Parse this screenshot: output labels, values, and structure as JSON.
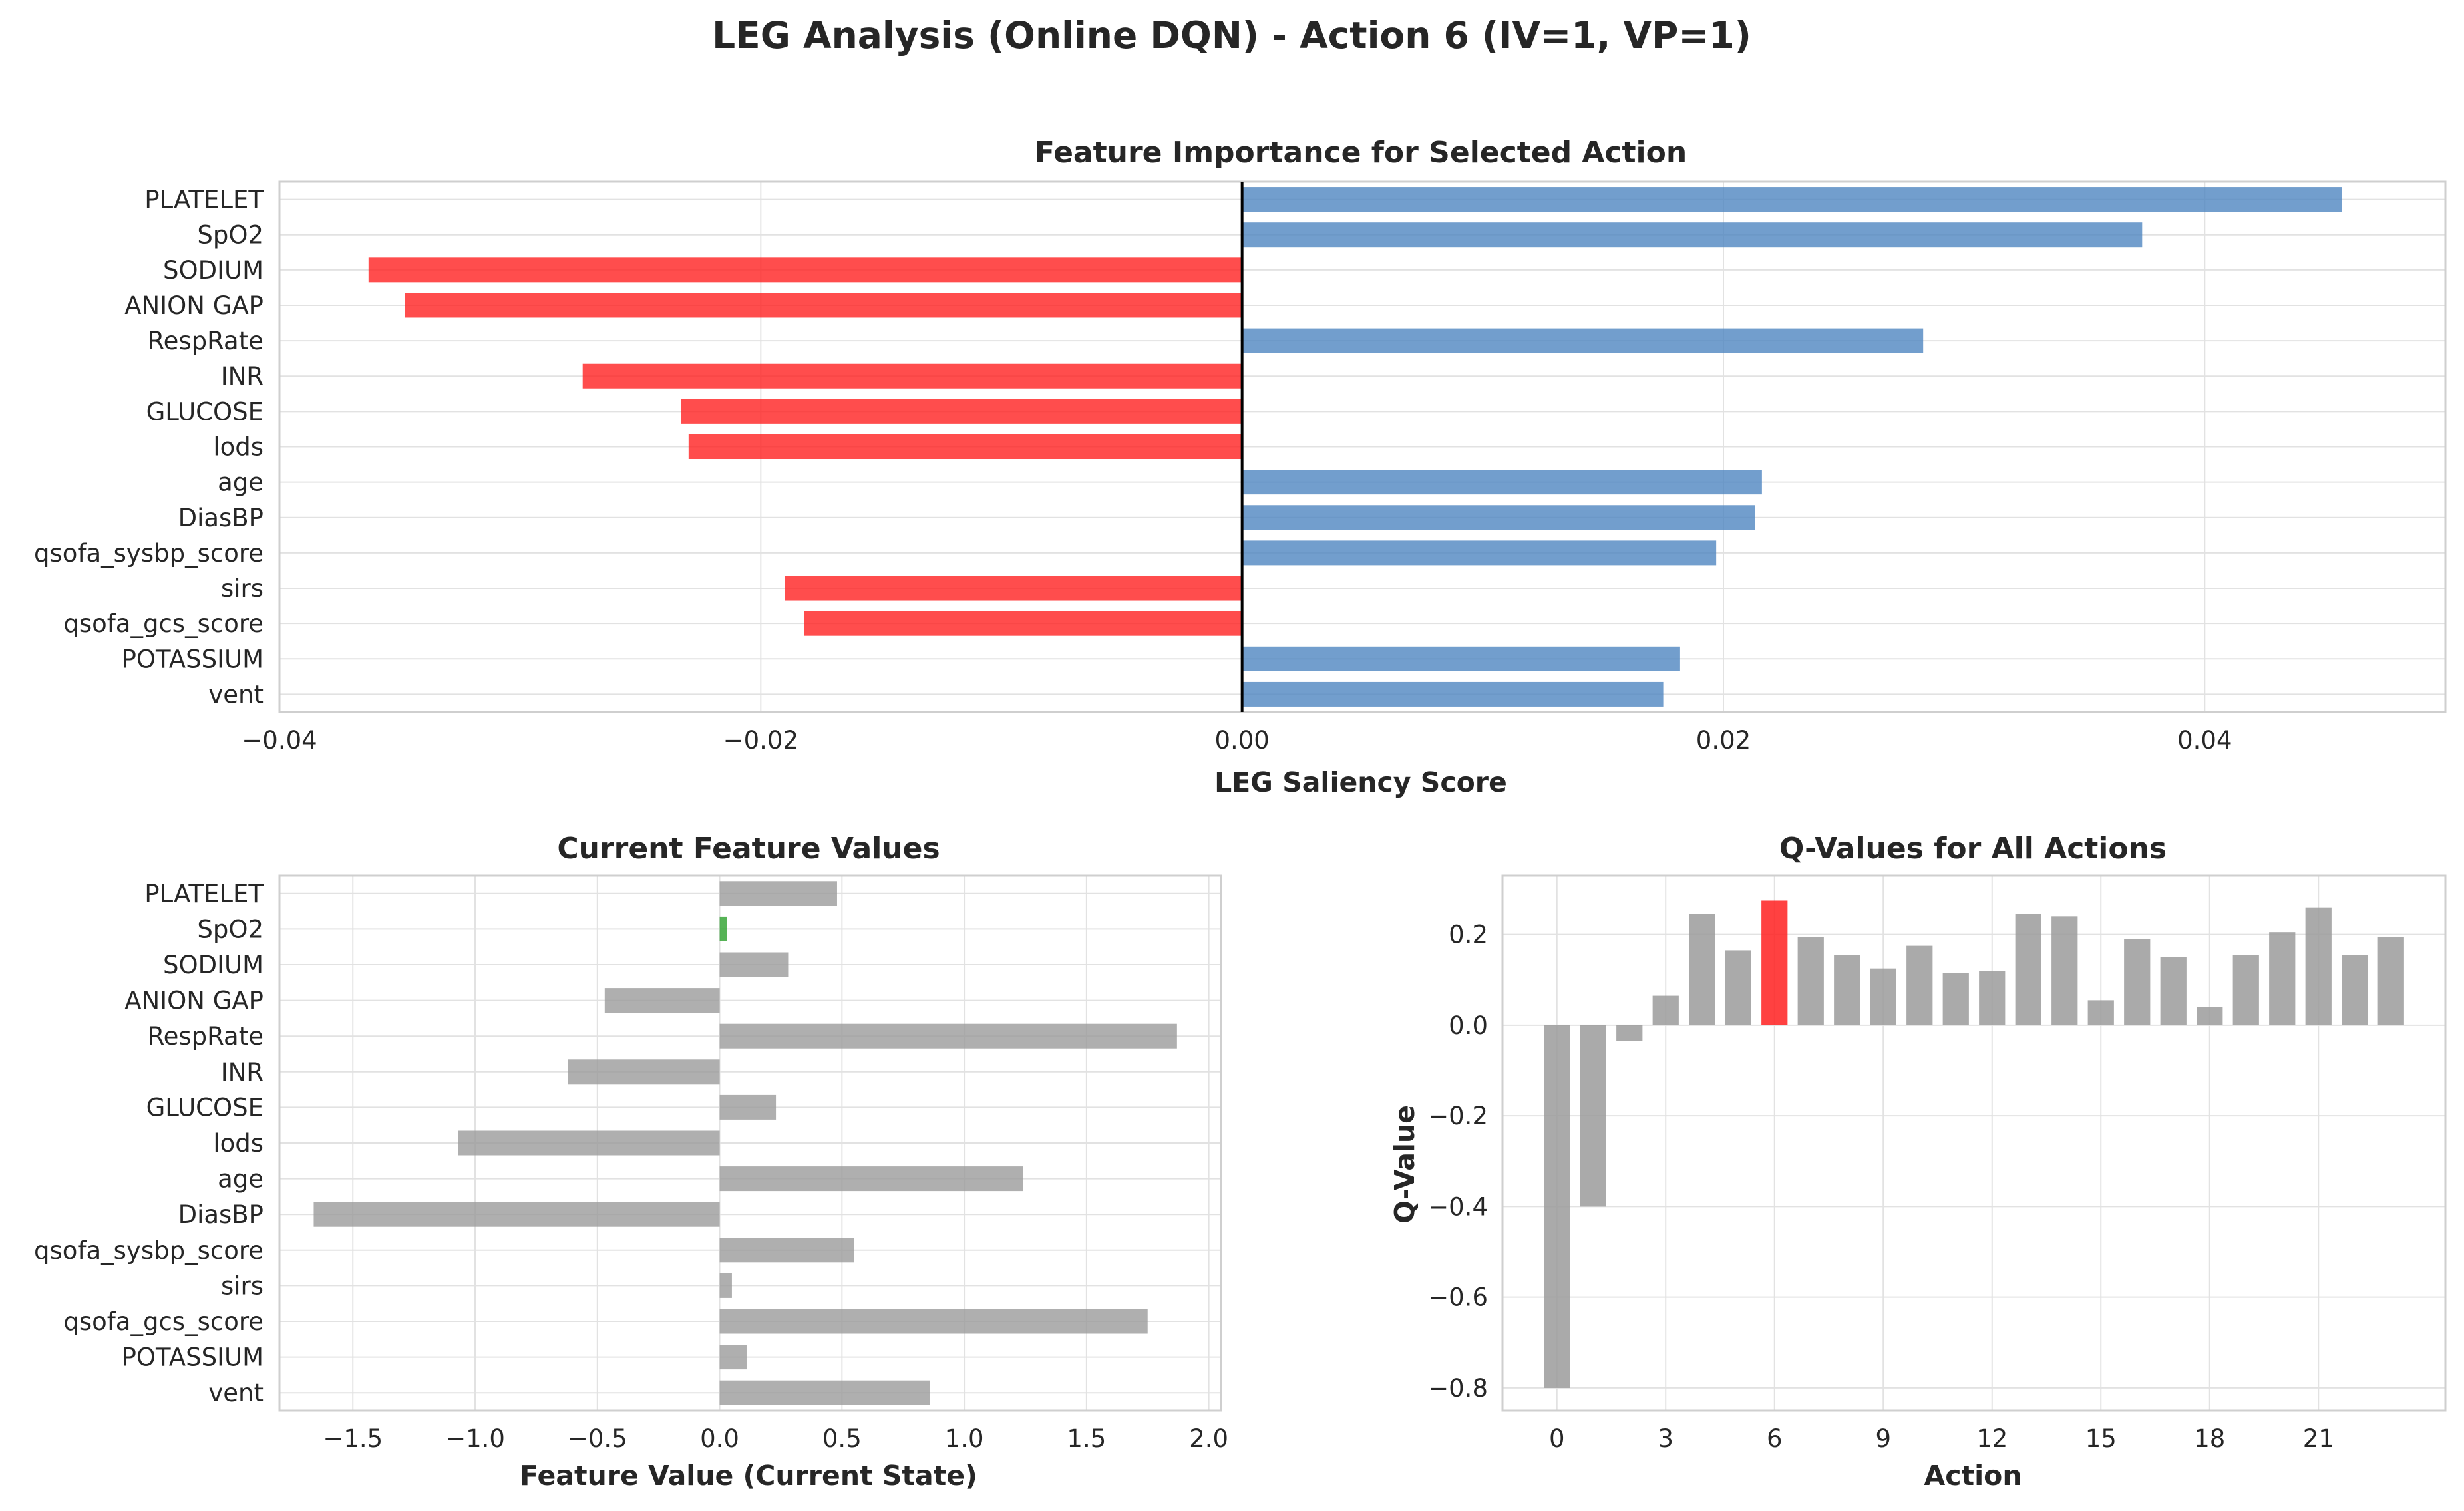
{
  "figure": {
    "suptitle": "LEG Analysis (Online DQN) - Action 6 (IV=1, VP=1)"
  },
  "colors": {
    "positive": "#4f86c0",
    "negative": "#ff2020",
    "neutral": "#9b9b9b",
    "highlight_feature": "#2ca02c",
    "selected_action": "#ff2020",
    "grid": "#e2e2e2",
    "spine": "#cfcfcf"
  },
  "chart_data": [
    {
      "id": "importance",
      "type": "bar",
      "orientation": "horizontal",
      "title": "Feature Importance for Selected Action",
      "xlabel": "LEG Saliency Score",
      "ylabel": "",
      "xlim": [
        -0.04,
        0.05
      ],
      "xticks": [
        -0.04,
        -0.02,
        0.0,
        0.02,
        0.04
      ],
      "xtick_labels": [
        "−0.04",
        "−0.02",
        "0.00",
        "0.02",
        "0.04"
      ],
      "grid": true,
      "zero_line": true,
      "categories": [
        "PLATELET",
        "SpO2",
        "SODIUM",
        "ANION GAP",
        "RespRate",
        "INR",
        "GLUCOSE",
        "lods",
        "age",
        "DiasBP",
        "qsofa_sysbp_score",
        "sirs",
        "qsofa_gcs_score",
        "POTASSIUM",
        "vent"
      ],
      "values": [
        0.0457,
        0.0374,
        -0.0363,
        -0.0348,
        0.0283,
        -0.0274,
        -0.0233,
        -0.023,
        0.0216,
        0.0213,
        0.0197,
        -0.019,
        -0.0182,
        0.0182,
        0.0175
      ]
    },
    {
      "id": "features",
      "type": "bar",
      "orientation": "horizontal",
      "title": "Current Feature Values",
      "xlabel": "Feature Value (Current State)",
      "ylabel": "",
      "xlim": [
        -1.8,
        2.05
      ],
      "xticks": [
        -1.5,
        -1.0,
        -0.5,
        0.0,
        0.5,
        1.0,
        1.5,
        2.0
      ],
      "xtick_labels": [
        "−1.5",
        "−1.0",
        "−0.5",
        "0.0",
        "0.5",
        "1.0",
        "1.5",
        "2.0"
      ],
      "grid": true,
      "categories": [
        "PLATELET",
        "SpO2",
        "SODIUM",
        "ANION GAP",
        "RespRate",
        "INR",
        "GLUCOSE",
        "lods",
        "age",
        "DiasBP",
        "qsofa_sysbp_score",
        "sirs",
        "qsofa_gcs_score",
        "POTASSIUM",
        "vent"
      ],
      "values": [
        0.48,
        0.03,
        0.28,
        -0.47,
        1.87,
        -0.62,
        0.23,
        -1.07,
        1.24,
        -1.66,
        0.55,
        0.05,
        1.75,
        0.11,
        0.86
      ],
      "highlight_index": 1
    },
    {
      "id": "qvalues",
      "type": "bar",
      "orientation": "vertical",
      "title": "Q-Values for All Actions",
      "xlabel": "Action",
      "ylabel": "Q-Value",
      "ylim": [
        -0.85,
        0.33
      ],
      "yticks": [
        -0.8,
        -0.6,
        -0.4,
        -0.2,
        0.0,
        0.2
      ],
      "ytick_labels": [
        "−0.8",
        "−0.6",
        "−0.4",
        "−0.2",
        "0.0",
        "0.2"
      ],
      "xlim": [
        -1.5,
        24.5
      ],
      "xticks": [
        0,
        3,
        6,
        9,
        12,
        15,
        18,
        21
      ],
      "xtick_labels": [
        "0",
        "3",
        "6",
        "9",
        "12",
        "15",
        "18",
        "21"
      ],
      "grid": true,
      "categories": [
        0,
        1,
        2,
        3,
        4,
        5,
        6,
        7,
        8,
        9,
        10,
        11,
        12,
        13,
        14,
        15,
        16,
        17,
        18,
        19,
        20,
        21,
        22,
        23
      ],
      "values": [
        -0.8,
        -0.4,
        -0.035,
        0.065,
        0.245,
        0.165,
        0.275,
        0.195,
        0.155,
        0.125,
        0.175,
        0.115,
        0.12,
        0.245,
        0.24,
        0.055,
        0.19,
        0.15,
        0.04,
        0.155,
        0.205,
        0.26,
        0.155,
        0.195
      ],
      "selected_action": 6
    }
  ]
}
